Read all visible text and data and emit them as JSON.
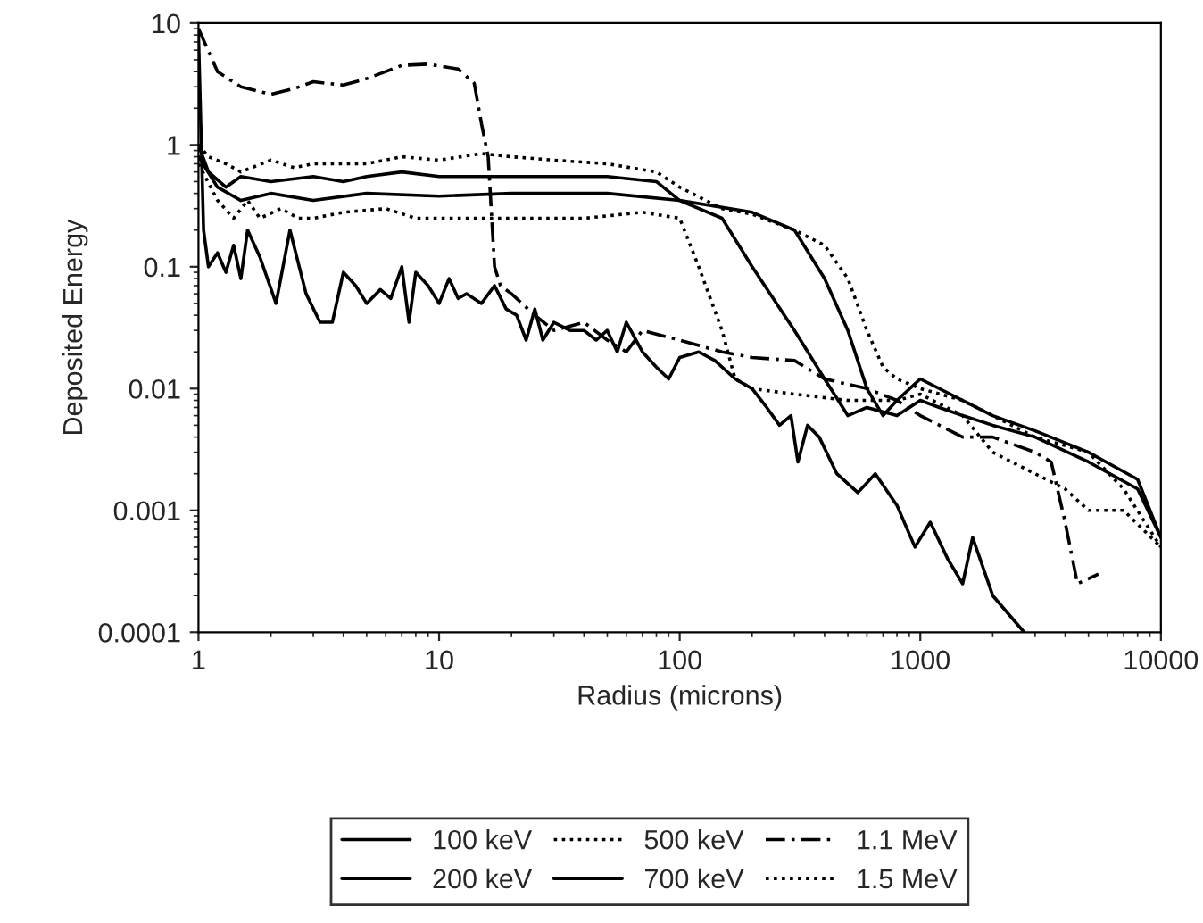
{
  "chart_data": {
    "type": "line",
    "xlabel": "Radius (microns)",
    "ylabel": "Deposited Energy",
    "log": "xy",
    "xlim": [
      1,
      10000
    ],
    "ylim": [
      0.0001,
      10
    ],
    "xticks": [
      1,
      10,
      100,
      1000,
      10000
    ],
    "yticks": [
      0.0001,
      0.001,
      0.01,
      0.1,
      1,
      10
    ],
    "grid": false,
    "legend": "bottom",
    "marker": "none",
    "series": [
      {
        "name": "100 keV",
        "color": "#000000",
        "line_style": "solid",
        "x": [
          1,
          1.05,
          1.1,
          1.2,
          1.3,
          1.4,
          1.5,
          1.6,
          1.8,
          2.1,
          2.4,
          2.8,
          3.2,
          3.6,
          4,
          4.5,
          5,
          5.7,
          6.3,
          7,
          7.5,
          8,
          9,
          10,
          11,
          12,
          13,
          15,
          17,
          19,
          21,
          23,
          25,
          27,
          30,
          35,
          40,
          45,
          50,
          55,
          60,
          70,
          80,
          90,
          100,
          120,
          140,
          170,
          200,
          230,
          260,
          290,
          310,
          340,
          380,
          450,
          550,
          650,
          800,
          950,
          1100,
          1300,
          1500,
          1650,
          2000,
          2700
        ],
        "values": [
          8,
          0.2,
          0.1,
          0.13,
          0.09,
          0.15,
          0.08,
          0.2,
          0.12,
          0.05,
          0.2,
          0.06,
          0.035,
          0.035,
          0.09,
          0.07,
          0.05,
          0.065,
          0.055,
          0.1,
          0.035,
          0.09,
          0.07,
          0.05,
          0.08,
          0.055,
          0.06,
          0.05,
          0.07,
          0.045,
          0.04,
          0.025,
          0.045,
          0.025,
          0.035,
          0.03,
          0.03,
          0.025,
          0.03,
          0.02,
          0.035,
          0.02,
          0.015,
          0.012,
          0.018,
          0.02,
          0.017,
          0.012,
          0.01,
          0.007,
          0.005,
          0.006,
          0.0025,
          0.005,
          0.004,
          0.002,
          0.0014,
          0.002,
          0.0011,
          0.0005,
          0.0008,
          0.0004,
          0.00025,
          0.0006,
          0.0002,
          0.0001
        ]
      },
      {
        "name": "200 keV",
        "color": "#000000",
        "line_style": "solid",
        "x": [
          1,
          1.1,
          1.3,
          1.5,
          2,
          3,
          4,
          5,
          7,
          10,
          20,
          50,
          80,
          100,
          150,
          200,
          300,
          400,
          500,
          600,
          800,
          1000,
          1200,
          1500,
          2000,
          3000,
          5000,
          8000,
          10000
        ],
        "values": [
          1,
          0.6,
          0.45,
          0.55,
          0.5,
          0.55,
          0.5,
          0.55,
          0.6,
          0.55,
          0.55,
          0.55,
          0.5,
          0.35,
          0.25,
          0.1,
          0.03,
          0.012,
          0.006,
          0.007,
          0.006,
          0.008,
          0.007,
          0.006,
          0.005,
          0.004,
          0.0025,
          0.0015,
          0.0006
        ]
      },
      {
        "name": "500 keV",
        "color": "#000000",
        "line_style": "dotted",
        "x": [
          1,
          1.2,
          1.4,
          1.6,
          1.8,
          2.2,
          2.6,
          3,
          4,
          6,
          8,
          10,
          15,
          20,
          40,
          70,
          100,
          120,
          150,
          170,
          200,
          300,
          500,
          800,
          1000,
          1500,
          2000,
          3000,
          4000,
          5000,
          7000,
          10000
        ],
        "values": [
          0.7,
          0.35,
          0.25,
          0.35,
          0.25,
          0.3,
          0.25,
          0.25,
          0.28,
          0.3,
          0.25,
          0.25,
          0.25,
          0.25,
          0.25,
          0.28,
          0.25,
          0.1,
          0.03,
          0.012,
          0.01,
          0.009,
          0.008,
          0.008,
          0.009,
          0.006,
          0.003,
          0.002,
          0.0015,
          0.001,
          0.001,
          0.0005
        ]
      },
      {
        "name": "700 keV",
        "color": "#000000",
        "line_style": "solid",
        "x": [
          1,
          1.2,
          1.5,
          2,
          3,
          5,
          10,
          20,
          50,
          100,
          200,
          300,
          400,
          500,
          600,
          700,
          800,
          1000,
          1500,
          2000,
          3000,
          5000,
          8000,
          10000
        ],
        "values": [
          0.8,
          0.45,
          0.35,
          0.4,
          0.35,
          0.4,
          0.38,
          0.4,
          0.4,
          0.35,
          0.28,
          0.2,
          0.08,
          0.03,
          0.01,
          0.006,
          0.008,
          0.012,
          0.008,
          0.006,
          0.0045,
          0.003,
          0.0018,
          0.0006
        ]
      },
      {
        "name": "1.1 MeV",
        "color": "#000000",
        "line_style": "dashed",
        "x": [
          1,
          1.2,
          1.5,
          2,
          2.5,
          3,
          4,
          5,
          6,
          7,
          9,
          12,
          14,
          15,
          16,
          17,
          18,
          20,
          25,
          30,
          40,
          50,
          60,
          70,
          100,
          150,
          200,
          300,
          400,
          600,
          800,
          1000,
          1500,
          2000,
          3000,
          3500,
          4000,
          4500,
          5500
        ],
        "values": [
          9,
          4,
          3,
          2.6,
          2.9,
          3.3,
          3.1,
          3.5,
          4,
          4.5,
          4.6,
          4.2,
          3.2,
          1.5,
          0.8,
          0.1,
          0.07,
          0.06,
          0.04,
          0.03,
          0.035,
          0.025,
          0.02,
          0.03,
          0.025,
          0.02,
          0.018,
          0.017,
          0.012,
          0.01,
          0.008,
          0.006,
          0.004,
          0.004,
          0.003,
          0.0025,
          0.0008,
          0.00025,
          0.0003
        ]
      },
      {
        "name": "1.5 MeV",
        "color": "#000000",
        "line_style": "dotted",
        "x": [
          1,
          1.1,
          1.3,
          1.5,
          2,
          2.5,
          3,
          4,
          5,
          7,
          10,
          15,
          20,
          30,
          50,
          80,
          100,
          150,
          200,
          300,
          400,
          500,
          600,
          700,
          800,
          1000,
          1500,
          2000,
          3000,
          5000,
          7000,
          10000
        ],
        "values": [
          1,
          0.8,
          0.7,
          0.6,
          0.75,
          0.65,
          0.7,
          0.7,
          0.7,
          0.8,
          0.75,
          0.85,
          0.8,
          0.75,
          0.7,
          0.6,
          0.45,
          0.3,
          0.27,
          0.2,
          0.15,
          0.08,
          0.03,
          0.015,
          0.012,
          0.01,
          0.008,
          0.006,
          0.004,
          0.003,
          0.0015,
          0.0005
        ]
      }
    ]
  }
}
